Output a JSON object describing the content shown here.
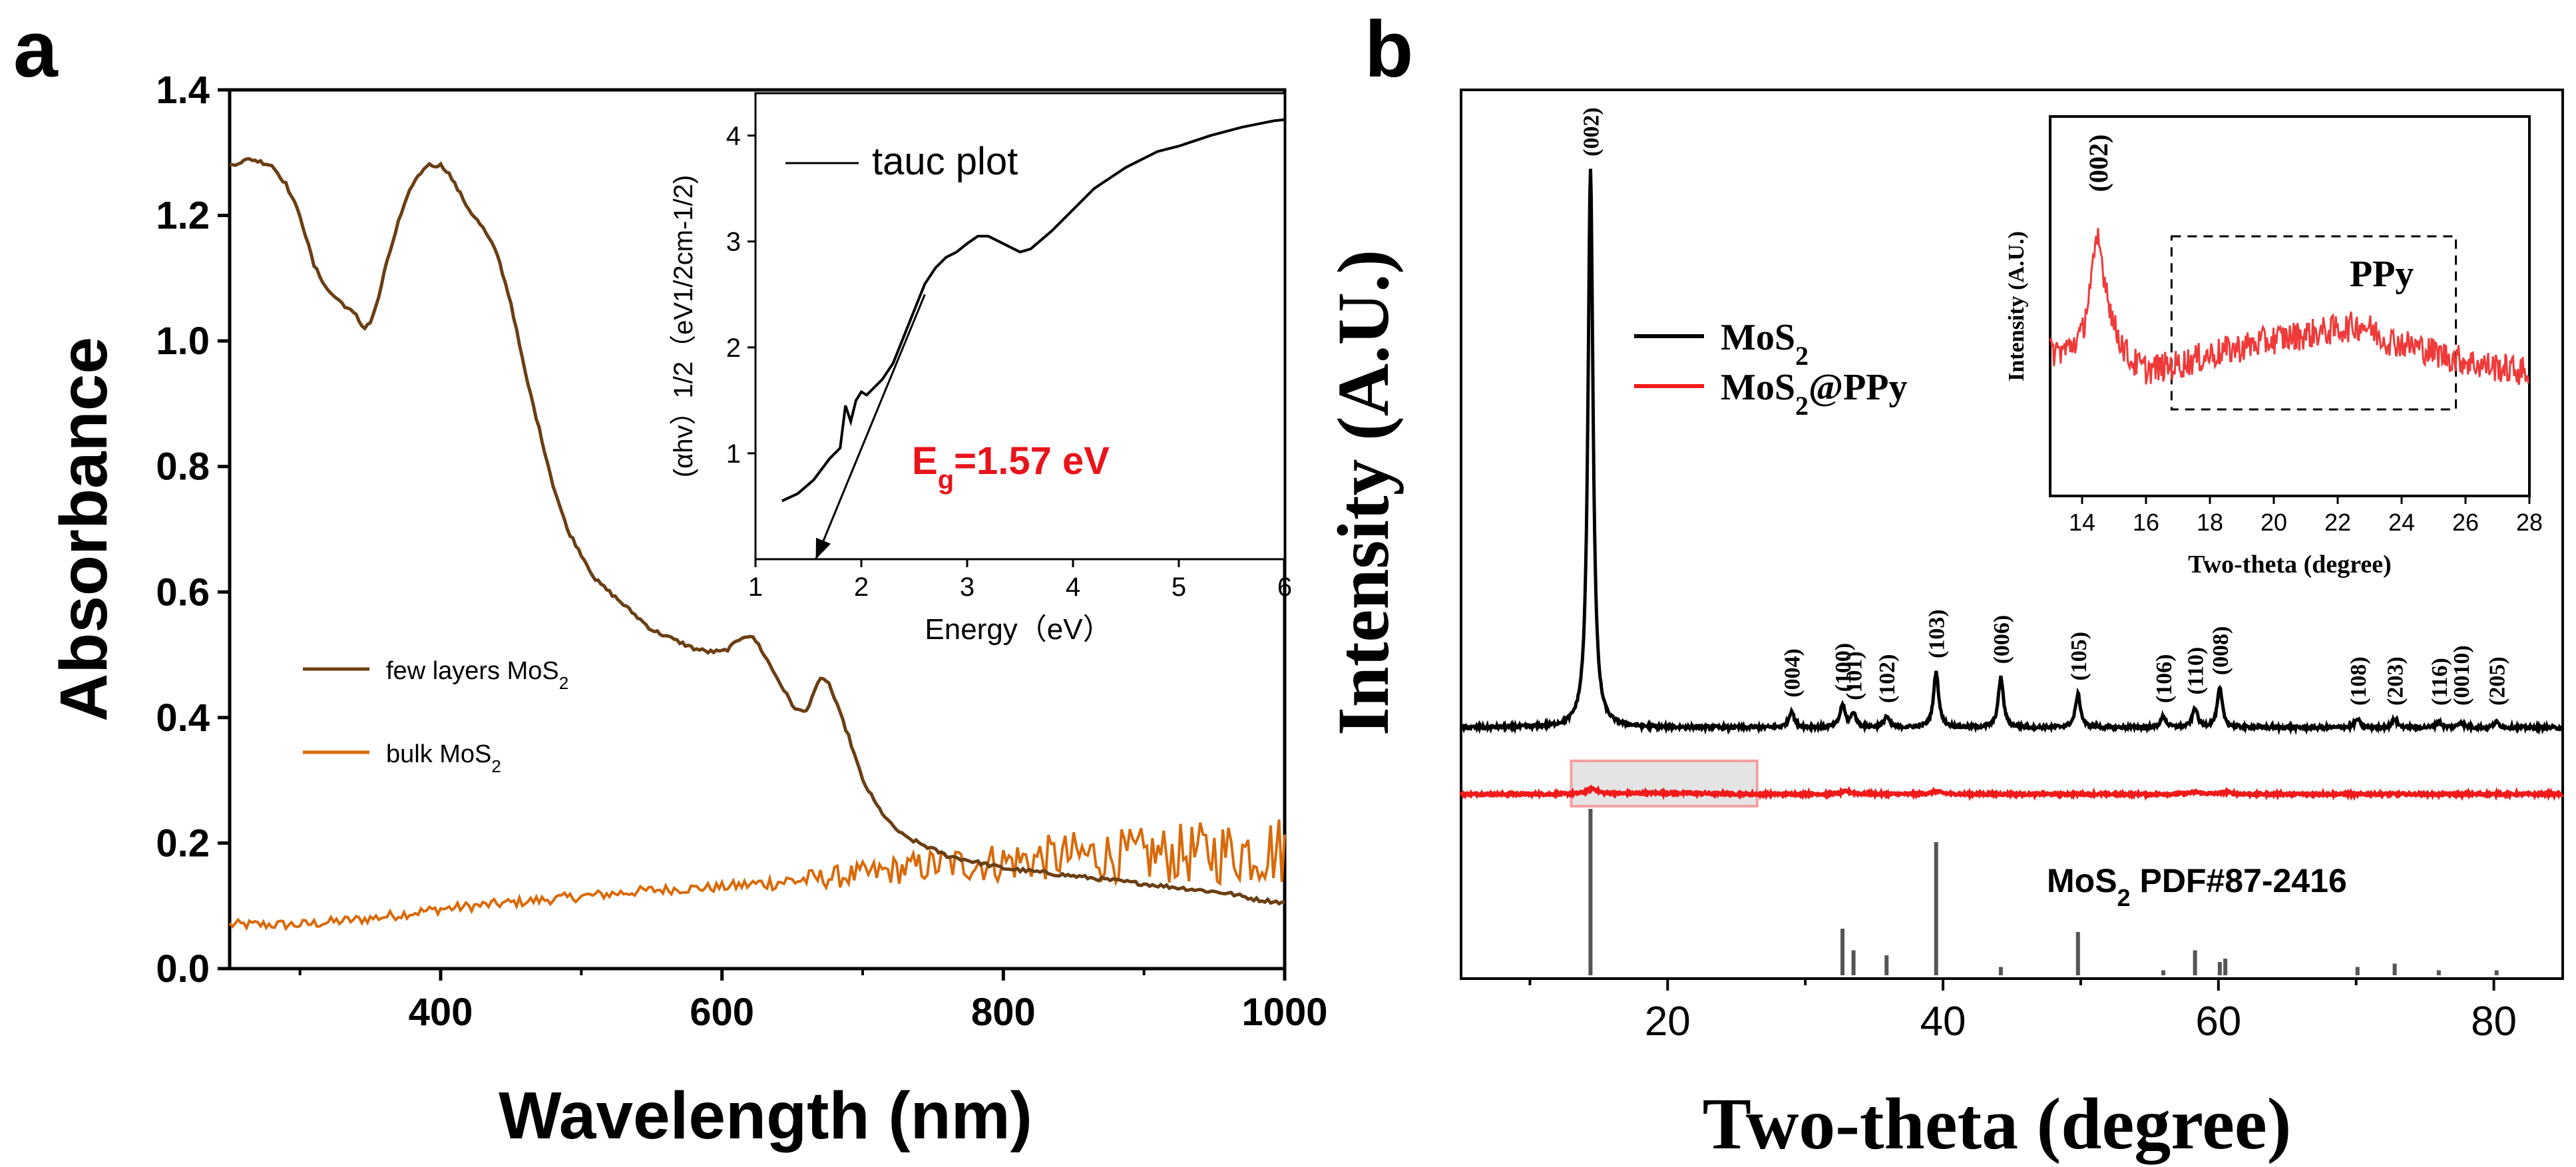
{
  "chart_data": [
    {
      "panel": "a",
      "type": "line",
      "title": "",
      "xlabel": "Wavelength (nm)",
      "ylabel": "Absorbance",
      "xlim": [
        250,
        1000
      ],
      "ylim": [
        0.0,
        1.4
      ],
      "xticks": [
        400,
        600,
        800,
        1000
      ],
      "yticks": [
        0.0,
        0.2,
        0.4,
        0.6,
        0.8,
        1.0,
        1.2,
        1.4
      ],
      "ytick_labels": [
        "0.0",
        "0.2",
        "0.4",
        "0.6",
        "0.8",
        "1.0",
        "1.2",
        "1.4"
      ],
      "grid": false,
      "legend_position": "center-left",
      "series": [
        {
          "name": "few layers MoS2",
          "legend_main": "few layers MoS",
          "legend_sub": "2",
          "color": "#6b3f14",
          "x": [
            250,
            265,
            280,
            290,
            300,
            310,
            320,
            330,
            340,
            345,
            350,
            355,
            360,
            370,
            380,
            390,
            395,
            400,
            405,
            410,
            420,
            430,
            440,
            450,
            460,
            470,
            480,
            490,
            500,
            510,
            520,
            530,
            540,
            550,
            560,
            570,
            580,
            590,
            600,
            605,
            610,
            615,
            620,
            625,
            630,
            640,
            650,
            655,
            660,
            665,
            670,
            675,
            680,
            690,
            700,
            710,
            720,
            730,
            740,
            750,
            760,
            780,
            800,
            820,
            840,
            860,
            880,
            900,
            920,
            940,
            960,
            980,
            1000
          ],
          "y": [
            1.28,
            1.29,
            1.28,
            1.25,
            1.2,
            1.12,
            1.08,
            1.06,
            1.04,
            1.02,
            1.03,
            1.06,
            1.11,
            1.19,
            1.25,
            1.28,
            1.28,
            1.28,
            1.27,
            1.25,
            1.21,
            1.18,
            1.14,
            1.06,
            0.95,
            0.86,
            0.77,
            0.7,
            0.66,
            0.62,
            0.6,
            0.58,
            0.56,
            0.54,
            0.53,
            0.52,
            0.51,
            0.505,
            0.505,
            0.51,
            0.52,
            0.53,
            0.53,
            0.52,
            0.5,
            0.46,
            0.42,
            0.41,
            0.41,
            0.44,
            0.46,
            0.46,
            0.43,
            0.37,
            0.3,
            0.26,
            0.23,
            0.21,
            0.2,
            0.19,
            0.18,
            0.17,
            0.16,
            0.155,
            0.15,
            0.145,
            0.14,
            0.135,
            0.13,
            0.125,
            0.12,
            0.11,
            0.105
          ]
        },
        {
          "name": "bulk MoS2",
          "legend_main": "bulk MoS",
          "legend_sub": "2",
          "color": "#d96a0a",
          "x": [
            250,
            300,
            350,
            400,
            450,
            500,
            550,
            600,
            650,
            700,
            750,
            800,
            850,
            900,
            950,
            1000
          ],
          "y": [
            0.07,
            0.07,
            0.08,
            0.095,
            0.105,
            0.115,
            0.125,
            0.13,
            0.14,
            0.15,
            0.165,
            0.17,
            0.18,
            0.18,
            0.185,
            0.19
          ],
          "noise_from_nm": 600,
          "noise_amplitude_max": 0.05
        }
      ],
      "inset": {
        "type": "line",
        "xlabel": "Energy（eV）",
        "ylabel": "(αhv）1/2（eV1/2cm-1/2)",
        "xlim": [
          1.0,
          6.0
        ],
        "ylim": [
          0.0,
          4.4
        ],
        "xticks": [
          1,
          2,
          3,
          4,
          5,
          6
        ],
        "yticks": [
          1,
          2,
          3,
          4
        ],
        "legend": "tauc plot",
        "annotation": {
          "text": "Eg=1.57 eV",
          "main": "E",
          "sub": "g",
          "rest": "=1.57 eV",
          "color": "#e8141b"
        },
        "series": {
          "name": "tauc plot",
          "color": "#000000",
          "x": [
            1.25,
            1.4,
            1.55,
            1.7,
            1.8,
            1.85,
            1.9,
            1.95,
            2.0,
            2.05,
            2.1,
            2.2,
            2.3,
            2.4,
            2.5,
            2.6,
            2.7,
            2.8,
            2.9,
            3.0,
            3.1,
            3.2,
            3.3,
            3.4,
            3.5,
            3.6,
            3.8,
            4.0,
            4.2,
            4.5,
            4.8,
            5.0,
            5.3,
            5.6,
            5.9,
            6.0
          ],
          "y": [
            0.55,
            0.62,
            0.75,
            0.95,
            1.05,
            1.45,
            1.3,
            1.5,
            1.58,
            1.55,
            1.6,
            1.7,
            1.85,
            2.1,
            2.35,
            2.6,
            2.75,
            2.85,
            2.9,
            2.98,
            3.05,
            3.05,
            3.0,
            2.95,
            2.9,
            2.93,
            3.1,
            3.3,
            3.5,
            3.7,
            3.85,
            3.9,
            4.0,
            4.08,
            4.14,
            4.15
          ]
        },
        "fit_line": {
          "x": [
            1.57,
            2.6
          ],
          "y": [
            0.0,
            2.5
          ]
        }
      }
    },
    {
      "panel": "b",
      "type": "line",
      "xlabel": "Two-theta (degree)",
      "ylabel": "Intensity (A.U.)",
      "xlim": [
        5,
        85
      ],
      "xticks": [
        20,
        40,
        60,
        80
      ],
      "grid": false,
      "legend_position": "upper-left",
      "series": [
        {
          "name": "MoS2",
          "legend_main": "MoS",
          "legend_sub": "2",
          "color": "#000000",
          "baseline": 0.0,
          "peaks": [
            {
              "x": 14.4,
              "height": 1.0,
              "label": "(002)"
            },
            {
              "x": 29.0,
              "height": 0.03,
              "label": "(004)"
            },
            {
              "x": 32.7,
              "height": 0.04,
              "label": "(100)"
            },
            {
              "x": 33.5,
              "height": 0.025,
              "label": "(101)"
            },
            {
              "x": 35.9,
              "height": 0.02,
              "label": "(102)"
            },
            {
              "x": 39.5,
              "height": 0.1,
              "label": "(103)"
            },
            {
              "x": 44.2,
              "height": 0.09,
              "label": "(006)"
            },
            {
              "x": 49.8,
              "height": 0.06,
              "label": "(105)"
            },
            {
              "x": 56.0,
              "height": 0.02,
              "label": "(106)"
            },
            {
              "x": 58.3,
              "height": 0.035,
              "label": "(110)"
            },
            {
              "x": 60.1,
              "height": 0.07,
              "label": "(008)"
            },
            {
              "x": 70.1,
              "height": 0.015,
              "label": "(108)"
            },
            {
              "x": 72.8,
              "height": 0.015,
              "label": "(203)"
            },
            {
              "x": 76.0,
              "height": 0.01,
              "label": "(116)"
            },
            {
              "x": 77.6,
              "height": 0.01,
              "label": "(0010)"
            },
            {
              "x": 80.2,
              "height": 0.01,
              "label": "(205)"
            }
          ]
        },
        {
          "name": "MoS2@PPy",
          "legend_main": "MoS",
          "legend_sub": "2",
          "legend_rest": "@PPy",
          "color": "#f01a1a",
          "baseline": 0.0,
          "peaks": [
            {
              "x": 14.5,
              "height": 0.03
            },
            {
              "x": 33.0,
              "height": 0.015
            },
            {
              "x": 39.5,
              "height": 0.015
            },
            {
              "x": 58.3,
              "height": 0.012
            },
            {
              "x": 60.5,
              "height": 0.01
            }
          ]
        }
      ],
      "reference": {
        "label": "MoS2 PDF#87-2416",
        "label_main": "MoS",
        "label_sub": "2",
        "label_rest": " PDF#87-2416",
        "color": "#555555",
        "sticks": [
          {
            "x": 14.4,
            "height": 1.0
          },
          {
            "x": 32.7,
            "height": 0.28
          },
          {
            "x": 33.5,
            "height": 0.15
          },
          {
            "x": 35.9,
            "height": 0.12
          },
          {
            "x": 39.5,
            "height": 0.8
          },
          {
            "x": 44.2,
            "height": 0.05
          },
          {
            "x": 49.8,
            "height": 0.26
          },
          {
            "x": 56.0,
            "height": 0.03
          },
          {
            "x": 58.3,
            "height": 0.15
          },
          {
            "x": 60.1,
            "height": 0.08
          },
          {
            "x": 60.5,
            "height": 0.1
          },
          {
            "x": 70.1,
            "height": 0.05
          },
          {
            "x": 72.8,
            "height": 0.07
          },
          {
            "x": 76.0,
            "height": 0.03
          },
          {
            "x": 80.2,
            "height": 0.03
          }
        ]
      },
      "highlight": {
        "x_range": [
          13,
          26.5
        ],
        "color": "#f5a0a0"
      },
      "inset": {
        "type": "line",
        "xlabel": "Two-theta (degree)",
        "ylabel": "Intensity (A.U.)",
        "xlim": [
          13,
          28
        ],
        "xticks": [
          14,
          16,
          18,
          20,
          22,
          24,
          26,
          28
        ],
        "color": "#f03a3a",
        "peak_label": {
          "x": 14.5,
          "text": "(002)"
        },
        "box_label": "PPy",
        "box_x_range": [
          16.8,
          25.7
        ],
        "x": [
          13.0,
          13.5,
          14.0,
          14.3,
          14.5,
          14.7,
          15.0,
          15.5,
          16.0,
          17.0,
          18.0,
          19.0,
          20.0,
          21.0,
          22.0,
          22.8,
          23.5,
          24.5,
          25.5,
          26.5,
          27.5,
          28.0
        ],
        "y": [
          0.45,
          0.46,
          0.52,
          0.75,
          0.9,
          0.75,
          0.55,
          0.42,
          0.38,
          0.4,
          0.44,
          0.47,
          0.5,
          0.52,
          0.54,
          0.56,
          0.5,
          0.47,
          0.43,
          0.4,
          0.38,
          0.37
        ]
      }
    }
  ],
  "panel_labels": {
    "a": "a",
    "b": "b"
  }
}
